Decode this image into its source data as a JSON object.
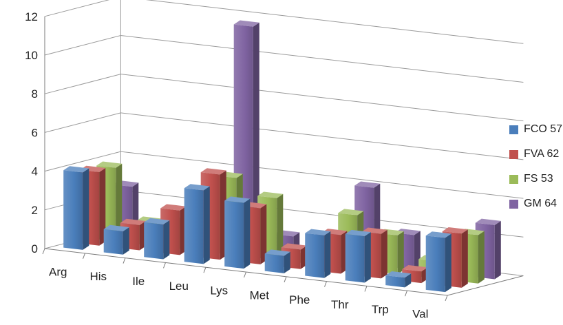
{
  "chart_data": {
    "type": "bar",
    "title": "",
    "xlabel": "",
    "ylabel": "",
    "ylim": [
      0,
      12
    ],
    "yticks": [
      0,
      2,
      4,
      6,
      8,
      10,
      12
    ],
    "grid": true,
    "legend_position": "right",
    "categories": [
      "Arg",
      "His",
      "Ile",
      "Leu",
      "Lys",
      "Met",
      "Phe",
      "Thr",
      "Trp",
      "Val"
    ],
    "series": [
      {
        "name": "FCO 57",
        "color": "#4a7ebb",
        "values": [
          4.0,
          1.2,
          1.8,
          3.8,
          3.4,
          0.9,
          2.2,
          2.4,
          0.5,
          2.8
        ]
      },
      {
        "name": "FVA 62",
        "color": "#c0504d",
        "values": [
          3.8,
          1.3,
          2.3,
          4.4,
          2.9,
          1.0,
          2.0,
          2.3,
          0.6,
          2.8
        ]
      },
      {
        "name": "FS 53",
        "color": "#9bbb59",
        "values": [
          3.8,
          1.2,
          1.5,
          4.0,
          3.2,
          0.4,
          2.8,
          2.0,
          0.9,
          2.5
        ]
      },
      {
        "name": "GM 64",
        "color": "#8064a2",
        "values": [
          2.6,
          0.4,
          1.1,
          11.6,
          1.0,
          1.2,
          4.0,
          1.8,
          0.2,
          2.8
        ]
      }
    ]
  }
}
